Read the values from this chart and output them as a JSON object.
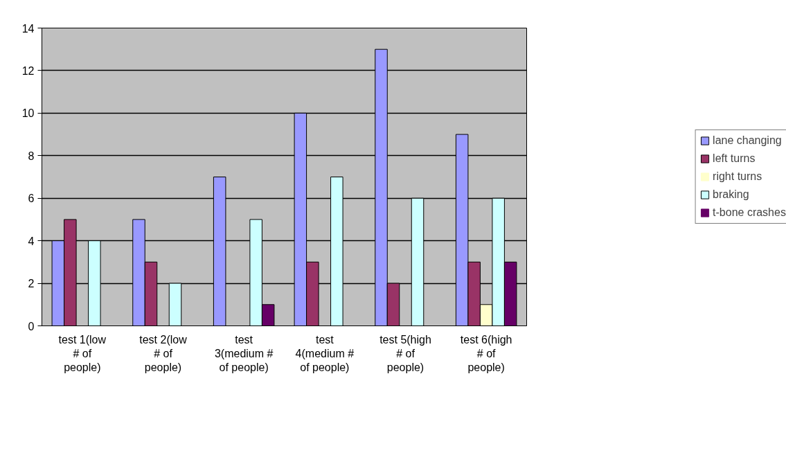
{
  "chart_data": {
    "type": "bar",
    "categories": [
      "test 1(low # of people)",
      "test 2(low # of people)",
      "test 3(medium # of people)",
      "test 4(medium # of people)",
      "test 5(high # of people)",
      "test 6(high # of people)"
    ],
    "series": [
      {
        "name": "lane changing",
        "color": "#9999ff",
        "values": [
          4,
          5,
          7,
          10,
          13,
          9
        ]
      },
      {
        "name": "left turns",
        "color": "#993366",
        "values": [
          5,
          3,
          0,
          3,
          2,
          3
        ]
      },
      {
        "name": "right turns",
        "color": "#ffffcc",
        "values": [
          0,
          0,
          0,
          0,
          0,
          1
        ]
      },
      {
        "name": "braking",
        "color": "#ccffff",
        "values": [
          4,
          2,
          5,
          7,
          6,
          6
        ]
      },
      {
        "name": "t-bone crashes",
        "color": "#660066",
        "values": [
          0,
          0,
          1,
          0,
          0,
          3
        ]
      }
    ],
    "ylim": [
      0,
      14
    ],
    "yticks": [
      0,
      2,
      4,
      6,
      8,
      10,
      12,
      14
    ],
    "grid": "y",
    "legend": "right"
  }
}
